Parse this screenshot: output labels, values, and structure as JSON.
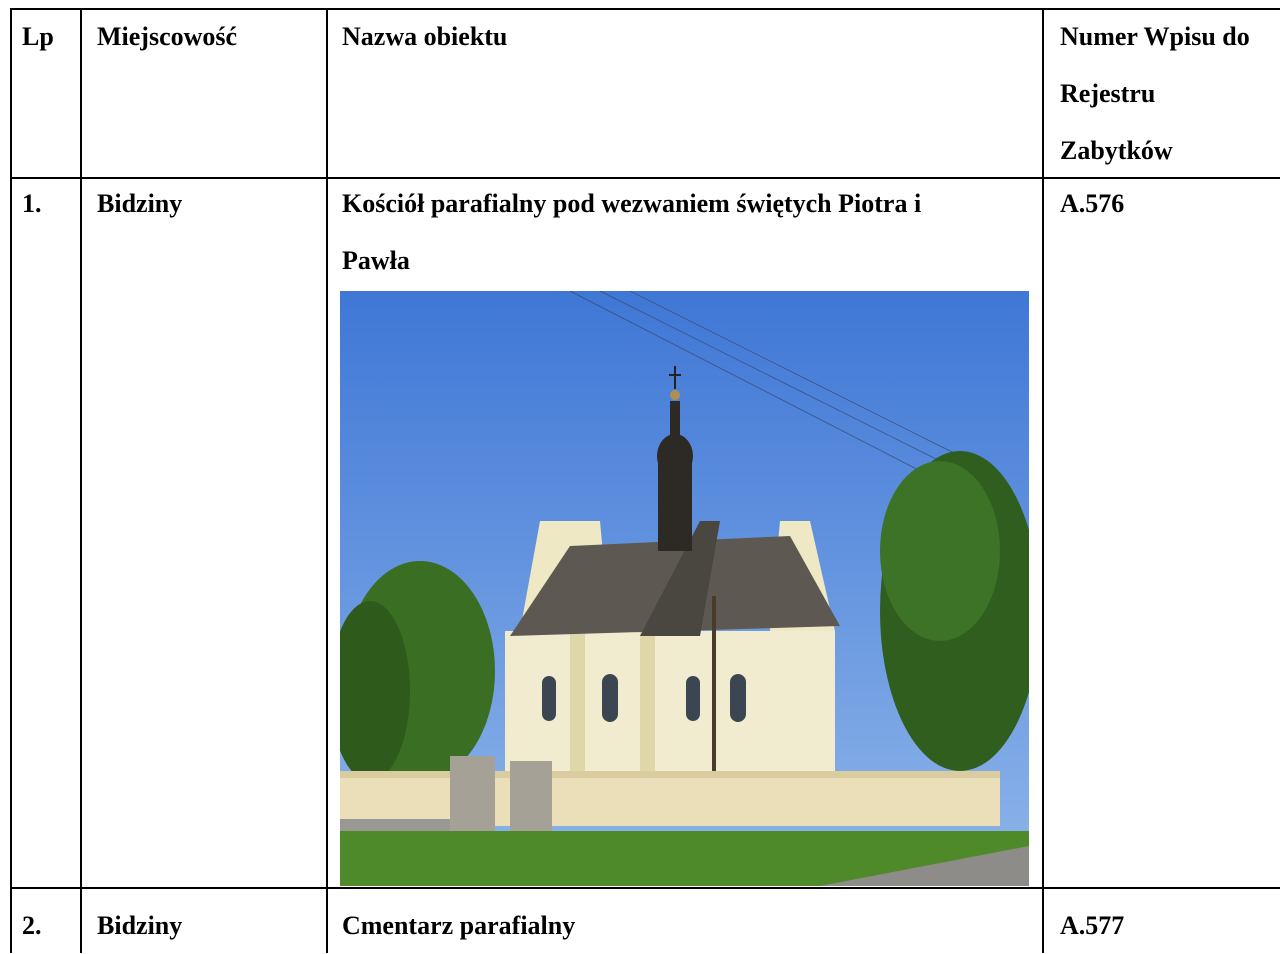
{
  "table": {
    "header": [
      "Lp",
      "Miejscowość",
      "Nazwa obiektu",
      "Numer Wpisu do Rejestru Zabytków"
    ],
    "rows": [
      [
        "1.",
        "Bidziny",
        "Kościół parafialny pod wezwaniem świętych Piotra i Pawła",
        "A.576"
      ],
      [
        "2.",
        "Bidziny",
        "Cmentarz parafialny",
        "A.577"
      ]
    ]
  }
}
